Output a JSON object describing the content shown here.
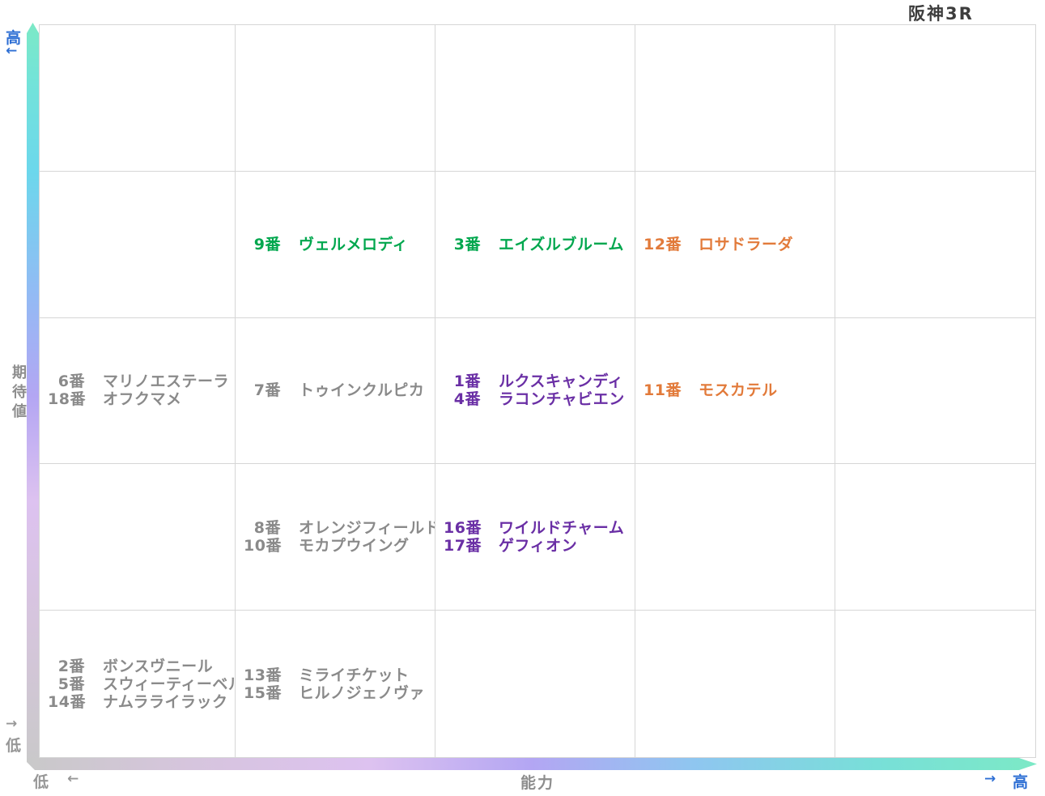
{
  "title": "阪神3R",
  "colors": {
    "green": "#00a74e",
    "orange": "#e27a3a",
    "purple": "#6a2fa5",
    "gray": "#8a8a8a",
    "blue_accent": "#2e6fd4",
    "axis_label_gray": "#8d8d8d",
    "grid_line": "#d6d6d6",
    "title_color": "#3d3d3d",
    "bar_high_mint": "#7ce9c6",
    "bar_cyan": "#6cd7ec",
    "bar_blue": "#92bbf4",
    "bar_purple": "#ddc2f0",
    "bar_low_gray": "#c9c9c9"
  },
  "axes": {
    "y": {
      "axis_label": "期待値",
      "high_label": "高",
      "low_label": "低",
      "up_arrow": "←",
      "down_arrow": "→"
    },
    "x": {
      "axis_label": "能力",
      "high_label": "高",
      "low_label": "低",
      "left_arrow": "←",
      "right_arrow": "→"
    }
  },
  "chart_data": {
    "type": "scatter",
    "title": "阪神3R",
    "xlabel": "能力",
    "ylabel": "期待値",
    "x_axis": {
      "low_label": "低",
      "high_label": "高",
      "direction": "right = higher ability"
    },
    "y_axis": {
      "low_label": "低",
      "high_label": "高",
      "direction": "up = higher expected value"
    },
    "grid": {
      "rows": 5,
      "cols": 5,
      "note": "row 1 = top (highest expectation), col 1 = left (lowest ability)"
    },
    "entries": [
      {
        "row": 2,
        "col": 2,
        "color": "green",
        "horses": [
          {
            "num": "9番",
            "name": "ヴェルメロディ"
          }
        ]
      },
      {
        "row": 2,
        "col": 3,
        "color": "green",
        "horses": [
          {
            "num": "3番",
            "name": "エイズルブルーム"
          }
        ]
      },
      {
        "row": 2,
        "col": 4,
        "color": "orange",
        "horses": [
          {
            "num": "12番",
            "name": "ロサドラーダ"
          }
        ]
      },
      {
        "row": 3,
        "col": 1,
        "color": "gray",
        "horses": [
          {
            "num": "6番",
            "name": "マリノエステーラ"
          },
          {
            "num": "18番",
            "name": "オフクマメ"
          }
        ]
      },
      {
        "row": 3,
        "col": 2,
        "color": "gray",
        "horses": [
          {
            "num": "7番",
            "name": "トゥインクルピカ"
          }
        ]
      },
      {
        "row": 3,
        "col": 3,
        "color": "purple",
        "horses": [
          {
            "num": "1番",
            "name": "ルクスキャンディ"
          },
          {
            "num": "4番",
            "name": "ラコンチャビエン"
          }
        ]
      },
      {
        "row": 3,
        "col": 4,
        "color": "orange",
        "horses": [
          {
            "num": "11番",
            "name": "モスカテル"
          }
        ]
      },
      {
        "row": 4,
        "col": 2,
        "color": "gray",
        "horses": [
          {
            "num": "8番",
            "name": "オレンジフィールド"
          },
          {
            "num": "10番",
            "name": "モカプウイング"
          }
        ]
      },
      {
        "row": 4,
        "col": 3,
        "color": "purple",
        "horses": [
          {
            "num": "16番",
            "name": "ワイルドチャーム"
          },
          {
            "num": "17番",
            "name": "ゲフィオン"
          }
        ]
      },
      {
        "row": 5,
        "col": 1,
        "color": "gray",
        "horses": [
          {
            "num": "2番",
            "name": "ボンスヴニール"
          },
          {
            "num": "5番",
            "name": "スウィーティーベル"
          },
          {
            "num": "14番",
            "name": "ナムラライラック"
          }
        ]
      },
      {
        "row": 5,
        "col": 2,
        "color": "gray",
        "horses": [
          {
            "num": "13番",
            "name": "ミライチケット"
          },
          {
            "num": "15番",
            "name": "ヒルノジェノヴァ"
          }
        ]
      }
    ]
  }
}
